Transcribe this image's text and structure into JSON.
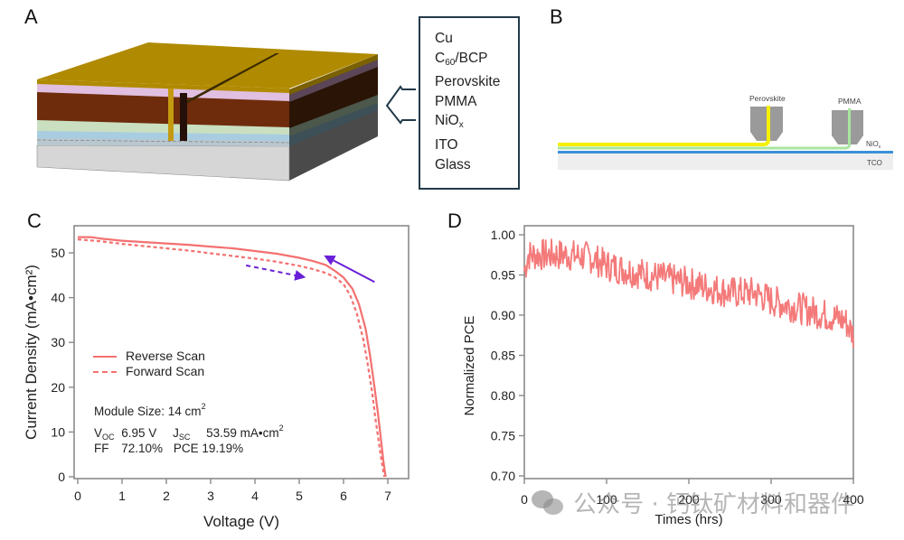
{
  "panels": {
    "A": {
      "label": "A",
      "layers": [
        "Cu",
        "C60/BCP",
        "Perovskite",
        "PMMA",
        "NiOx",
        "ITO",
        "Glass"
      ],
      "layer_display": [
        {
          "main": "Cu",
          "sub": ""
        },
        {
          "main": "C",
          "sub": "60",
          "rest": "/BCP"
        },
        {
          "main": "Perovskite",
          "sub": ""
        },
        {
          "main": "PMMA",
          "sub": ""
        },
        {
          "main": "NiO",
          "sub": "x"
        },
        {
          "main": "ITO",
          "sub": ""
        },
        {
          "main": "Glass",
          "sub": ""
        }
      ],
      "colors": {
        "cu": "#b08a00",
        "bcp": "#e0bfe0",
        "perovskite": "#6e2c0c",
        "pmma": "#c9dfc0",
        "nio": "#a9cde0",
        "glass": "#d4d4d4"
      }
    },
    "B": {
      "label": "B",
      "head_labels": [
        "Perovskite",
        "PMMA"
      ],
      "layer_labels": {
        "nio": "NiO",
        "nio_sub": "x",
        "tco": "TCO"
      },
      "colors": {
        "perovskite": "#f5f000",
        "pmma": "#a8e6a0",
        "nio": "#3c8fd8",
        "tco": "#eeeeee",
        "head": "#9a9a9a"
      }
    },
    "C": {
      "label": "C",
      "legend": [
        "Reverse Scan",
        "Forward Scan"
      ],
      "info": {
        "module_size_label": "Module Size: 14 cm",
        "module_size_sup": "2",
        "voc_label": "V",
        "voc_sub": "OC",
        "voc_value": "6.95 V",
        "jsc_label": "J",
        "jsc_sub": "SC",
        "jsc_value": "53.59 mA•cm",
        "jsc_sup": "2",
        "ff_label": "FF",
        "ff_value": "72.10%",
        "pce_label": "PCE",
        "pce_value": "19.19%"
      }
    },
    "D": {
      "label": "D"
    }
  },
  "watermark": "公众号 · 钙钛矿材料和器件",
  "chart_data": [
    {
      "type": "line",
      "title": "",
      "xlabel": "Voltage (V)",
      "ylabel": "Current Density (mA•cm²)",
      "xlim": [
        -0.05,
        7.5
      ],
      "ylim": [
        -0.5,
        55
      ],
      "xticks": [
        0,
        1,
        2,
        3,
        4,
        5,
        6,
        7
      ],
      "yticks": [
        0,
        10,
        20,
        30,
        40,
        50
      ],
      "grid": false,
      "legend_position": "center-left",
      "line_color": "#f47070",
      "arrow_color": "#6a1fd6",
      "series": [
        {
          "name": "Reverse Scan",
          "style": "solid",
          "x": [
            0.0,
            0.3,
            0.5,
            1.0,
            1.5,
            2.0,
            2.5,
            3.0,
            3.5,
            4.0,
            4.5,
            5.0,
            5.3,
            5.6,
            5.8,
            6.0,
            6.2,
            6.35,
            6.5,
            6.6,
            6.7,
            6.78,
            6.85,
            6.9,
            6.95
          ],
          "y": [
            53.5,
            53.5,
            53.2,
            52.7,
            52.4,
            52.1,
            51.8,
            51.4,
            51.0,
            50.4,
            49.8,
            48.9,
            48.2,
            47.3,
            46.0,
            44.5,
            42.0,
            38.5,
            33.0,
            27.0,
            20.0,
            14.0,
            8.0,
            3.5,
            0.0
          ]
        },
        {
          "name": "Forward Scan",
          "style": "dashed",
          "x": [
            0.0,
            0.5,
            1.0,
            1.5,
            2.0,
            2.5,
            3.0,
            3.5,
            4.0,
            4.5,
            5.0,
            5.3,
            5.6,
            5.8,
            6.0,
            6.15,
            6.3,
            6.45,
            6.55,
            6.65,
            6.72,
            6.8,
            6.86,
            6.92
          ],
          "y": [
            53.0,
            52.6,
            52.0,
            51.5,
            51.0,
            50.5,
            49.9,
            49.3,
            48.7,
            48.0,
            47.1,
            46.4,
            45.5,
            44.6,
            43.0,
            40.5,
            36.5,
            30.5,
            25.0,
            18.5,
            13.0,
            7.5,
            3.5,
            0.0
          ]
        }
      ],
      "annotations": [
        {
          "type": "arrow",
          "style": "solid",
          "direction": "reverse scan (right to left)",
          "from": [
            6.7,
            43.5
          ],
          "to": [
            5.6,
            49.2
          ]
        },
        {
          "type": "arrow",
          "style": "dashed",
          "direction": "forward scan (left to right)",
          "from": [
            3.8,
            47.2
          ],
          "to": [
            5.1,
            44.6
          ]
        }
      ]
    },
    {
      "type": "line",
      "title": "",
      "xlabel": "Times (hrs)",
      "ylabel": "Normalized PCE",
      "xlim": [
        0,
        400
      ],
      "ylim": [
        0.695,
        1.011
      ],
      "xticks": [
        0,
        100,
        200,
        300,
        400
      ],
      "yticks": [
        0.7,
        0.75,
        0.8,
        0.85,
        0.9,
        0.95,
        1.0
      ],
      "ytick_labels": [
        "0.70",
        "0.75",
        "0.80",
        "0.85",
        "0.90",
        "0.95",
        "1.00"
      ],
      "grid": false,
      "line_color": "#f47a7a",
      "series": [
        {
          "name": "Normalized PCE",
          "style": "solid noisy",
          "trend_x": [
            0,
            5,
            20,
            50,
            80,
            100,
            150,
            200,
            250,
            280,
            300,
            330,
            360,
            390,
            400
          ],
          "trend_y": [
            0.955,
            0.975,
            0.975,
            0.975,
            0.972,
            0.962,
            0.95,
            0.94,
            0.928,
            0.928,
            0.918,
            0.91,
            0.902,
            0.893,
            0.875
          ],
          "noise_amplitude": 0.02,
          "sample_count": 400
        }
      ]
    }
  ]
}
